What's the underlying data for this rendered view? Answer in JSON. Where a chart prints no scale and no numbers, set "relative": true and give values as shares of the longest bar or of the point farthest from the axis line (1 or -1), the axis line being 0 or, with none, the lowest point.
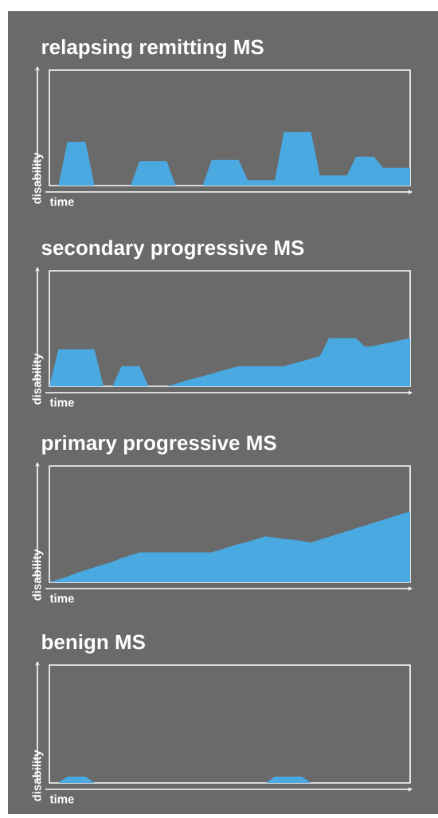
{
  "chart_data": [
    {
      "type": "area",
      "title": "relapsing remitting MS",
      "xlabel": "time",
      "ylabel": "disability",
      "relative": true,
      "color": "#4aa9e0",
      "categories": [
        null,
        null,
        null,
        null,
        null,
        null,
        null,
        null,
        null,
        null,
        null,
        null,
        null,
        null,
        null,
        null,
        null,
        null,
        null,
        null,
        null,
        null,
        null,
        null,
        null,
        null,
        null,
        null,
        null,
        null,
        null,
        null,
        null,
        null,
        null,
        null,
        null,
        null,
        null,
        null,
        null
      ],
      "values": [
        0,
        0,
        0.82,
        0.82,
        0.82,
        0,
        0,
        0,
        0,
        0,
        0.46,
        0.46,
        0.46,
        0.46,
        0,
        0,
        0,
        0,
        0.48,
        0.48,
        0.48,
        0.48,
        0.1,
        0.1,
        0.1,
        0.1,
        1,
        1,
        1,
        1,
        0.19,
        0.19,
        0.19,
        0.19,
        0.54,
        0.54,
        0.54,
        0.33,
        0.33,
        0.33,
        0.33
      ]
    },
    {
      "type": "area",
      "title": "secondary progressive MS",
      "xlabel": "time",
      "ylabel": "disability",
      "relative": true,
      "color": "#4aa9e0",
      "categories": [
        null,
        null,
        null,
        null,
        null,
        null,
        null,
        null,
        null,
        null,
        null,
        null,
        null,
        null,
        null,
        null,
        null,
        null,
        null,
        null,
        null,
        null,
        null,
        null,
        null,
        null,
        null,
        null,
        null,
        null,
        null,
        null,
        null,
        null,
        null,
        null,
        null,
        null,
        null,
        null,
        null
      ],
      "values": [
        0,
        0.77,
        0.77,
        0.77,
        0.77,
        0.77,
        0,
        0,
        0.42,
        0.42,
        0.42,
        0,
        0,
        0,
        0.05,
        0.11,
        0.16,
        0.21,
        0.26,
        0.32,
        0.37,
        0.42,
        0.42,
        0.42,
        0.42,
        0.42,
        0.42,
        0.47,
        0.52,
        0.57,
        0.63,
        1,
        1,
        1,
        1,
        0.82,
        0.84,
        0.88,
        0.92,
        0.96,
        1
      ]
    },
    {
      "type": "area",
      "title": "primary progressive MS",
      "xlabel": "time",
      "ylabel": "disability",
      "relative": true,
      "color": "#4aa9e0",
      "categories": [
        null,
        null,
        null,
        null,
        null,
        null,
        null,
        null,
        null,
        null,
        null,
        null,
        null,
        null,
        null,
        null,
        null,
        null,
        null,
        null,
        null,
        null,
        null,
        null,
        null,
        null,
        null,
        null,
        null,
        null,
        null,
        null,
        null,
        null,
        null,
        null,
        null,
        null,
        null,
        null,
        null
      ],
      "values": [
        0,
        0.04,
        0.08,
        0.13,
        0.17,
        0.21,
        0.25,
        0.29,
        0.34,
        0.38,
        0.42,
        0.42,
        0.42,
        0.42,
        0.42,
        0.42,
        0.42,
        0.42,
        0.42,
        0.46,
        0.5,
        0.54,
        0.57,
        0.61,
        0.65,
        0.63,
        0.61,
        0.6,
        0.58,
        0.56,
        0.6,
        0.64,
        0.68,
        0.72,
        0.76,
        0.8,
        0.84,
        0.88,
        0.92,
        0.96,
        1
      ]
    },
    {
      "type": "area",
      "title": "benign MS",
      "xlabel": "time",
      "ylabel": "disability",
      "relative": true,
      "color": "#4aa9e0",
      "categories": [
        null,
        null,
        null,
        null,
        null,
        null,
        null,
        null,
        null,
        null,
        null,
        null,
        null,
        null,
        null,
        null,
        null,
        null,
        null,
        null,
        null,
        null,
        null,
        null,
        null,
        null,
        null,
        null,
        null,
        null,
        null,
        null,
        null,
        null,
        null,
        null,
        null,
        null,
        null,
        null,
        null
      ],
      "values": [
        0,
        0,
        1,
        1,
        1,
        0,
        0,
        0,
        0,
        0,
        0,
        0,
        0,
        0,
        0,
        0,
        0,
        0,
        0,
        0,
        0,
        0,
        0,
        0,
        0,
        1,
        1,
        1,
        1,
        0,
        0,
        0,
        0,
        0,
        0,
        0,
        0,
        0,
        0,
        0,
        0
      ]
    }
  ]
}
